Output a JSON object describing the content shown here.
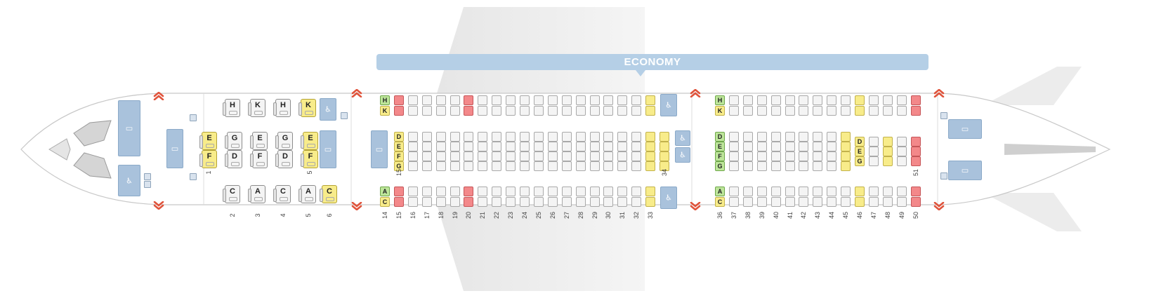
{
  "cabin": {
    "class_label": "ECONOMY"
  },
  "colors": {
    "standard": "#f4f4f4",
    "extra_legroom": "#f8ec8a",
    "restricted": "#f3888a",
    "good": "#bde59a",
    "facility": "#a9c2dc",
    "exit": "#e0543c"
  },
  "icons": {
    "lavatory": "lavatory-icon",
    "galley": "galley-icon",
    "exit": "exit-arrow-icon"
  },
  "business": {
    "rows": [
      "2",
      "3",
      "4",
      "5",
      "6"
    ],
    "small_row_labels": [
      "1",
      "5"
    ],
    "window_top": [
      {
        "row": "2",
        "letter": "H",
        "status": "standard"
      },
      {
        "row": "3",
        "letter": "K",
        "status": "standard"
      },
      {
        "row": "4",
        "letter": "H",
        "status": "standard"
      },
      {
        "row": "5",
        "letter": "K",
        "status": "yellow"
      }
    ],
    "center_pairs": [
      {
        "row": "1",
        "top": "E",
        "bottom": "F",
        "status": "yellow"
      },
      {
        "row": "2",
        "top": "G",
        "bottom": "D",
        "status": "standard"
      },
      {
        "row": "3",
        "top": "E",
        "bottom": "F",
        "status": "standard"
      },
      {
        "row": "4",
        "top": "G",
        "bottom": "D",
        "status": "standard"
      },
      {
        "row": "5",
        "top": "E",
        "bottom": "F",
        "status": "yellow"
      }
    ],
    "window_bottom": [
      {
        "row": "2",
        "letter": "C",
        "status": "standard"
      },
      {
        "row": "3",
        "letter": "A",
        "status": "standard"
      },
      {
        "row": "4",
        "letter": "C",
        "status": "standard"
      },
      {
        "row": "5",
        "letter": "A",
        "status": "standard"
      },
      {
        "row": "6",
        "letter": "C",
        "status": "yellow"
      }
    ]
  },
  "economy": {
    "section1": {
      "rows": [
        "14",
        "15",
        "16",
        "17",
        "18",
        "19",
        "20",
        "21",
        "22",
        "23",
        "24",
        "25",
        "26",
        "27",
        "28",
        "29",
        "30",
        "31",
        "32",
        "33"
      ],
      "side_letters_top": [
        "H",
        "K"
      ],
      "side_letters_bottom": [
        "A",
        "C"
      ],
      "center_letters": [
        "D",
        "E",
        "F",
        "G"
      ],
      "center_start_label": "15",
      "center_end_label": "34",
      "red_rows": [
        "15",
        "20"
      ],
      "yellow_rows": [
        "33"
      ]
    },
    "section2": {
      "rows": [
        "36",
        "37",
        "38",
        "39",
        "40",
        "41",
        "42",
        "43",
        "44",
        "45",
        "46",
        "47",
        "48",
        "49",
        "50"
      ],
      "side_letters_top": [
        "H",
        "K"
      ],
      "side_letters_bottom": [
        "A",
        "C"
      ],
      "center_letters": [
        "D",
        "E",
        "F",
        "G"
      ],
      "tail_letters": [
        "D",
        "E",
        "G"
      ],
      "center_end_label": "51",
      "red_rows": [
        "50"
      ],
      "yellow_rows": [
        "46"
      ]
    }
  }
}
